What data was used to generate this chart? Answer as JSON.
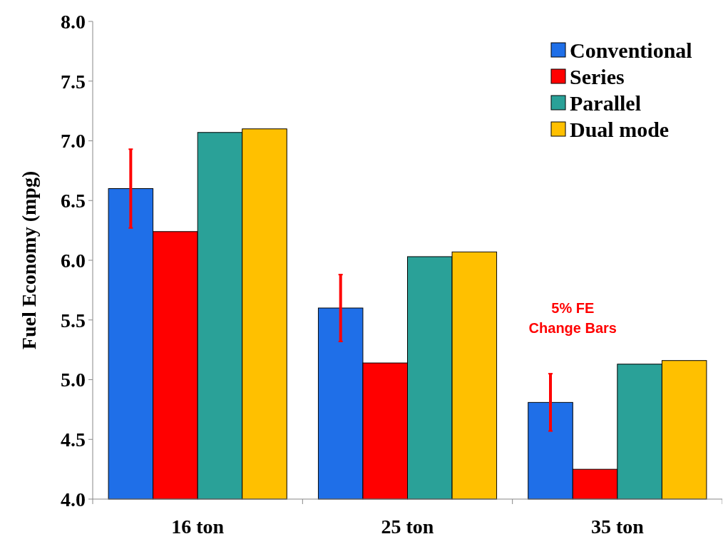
{
  "chart_data": {
    "type": "bar",
    "ylabel": "Fuel Economy (mpg)",
    "categories": [
      "16 ton",
      "25 ton",
      "35 ton"
    ],
    "series": [
      {
        "name": "Conventional",
        "color": "#1f6fe8",
        "values": [
          6.6,
          5.6,
          4.81
        ],
        "errors": [
          0.33,
          0.28,
          0.24
        ]
      },
      {
        "name": "Series",
        "color": "#ff0000",
        "values": [
          6.24,
          5.14,
          4.25
        ]
      },
      {
        "name": "Parallel",
        "color": "#2aa198",
        "values": [
          7.07,
          6.03,
          5.13
        ]
      },
      {
        "name": "Dual mode",
        "color": "#ffc000",
        "values": [
          7.1,
          6.07,
          5.16
        ]
      }
    ],
    "ylim": [
      4,
      8
    ],
    "yticks": [
      {
        "value": 4,
        "label": "4.0"
      },
      {
        "value": 4.5,
        "label": "4.5"
      },
      {
        "value": 5,
        "label": "5.0"
      },
      {
        "value": 5.5,
        "label": "5.5"
      },
      {
        "value": 6,
        "label": "6.0"
      },
      {
        "value": 6.5,
        "label": "6.5"
      },
      {
        "value": 7,
        "label": "7.0"
      },
      {
        "value": 7.5,
        "label": "7.5"
      },
      {
        "value": 8,
        "label": "8.0"
      }
    ],
    "legend": "top right",
    "grid": false,
    "annotations": [
      "5% FE\nChange Bars"
    ]
  }
}
